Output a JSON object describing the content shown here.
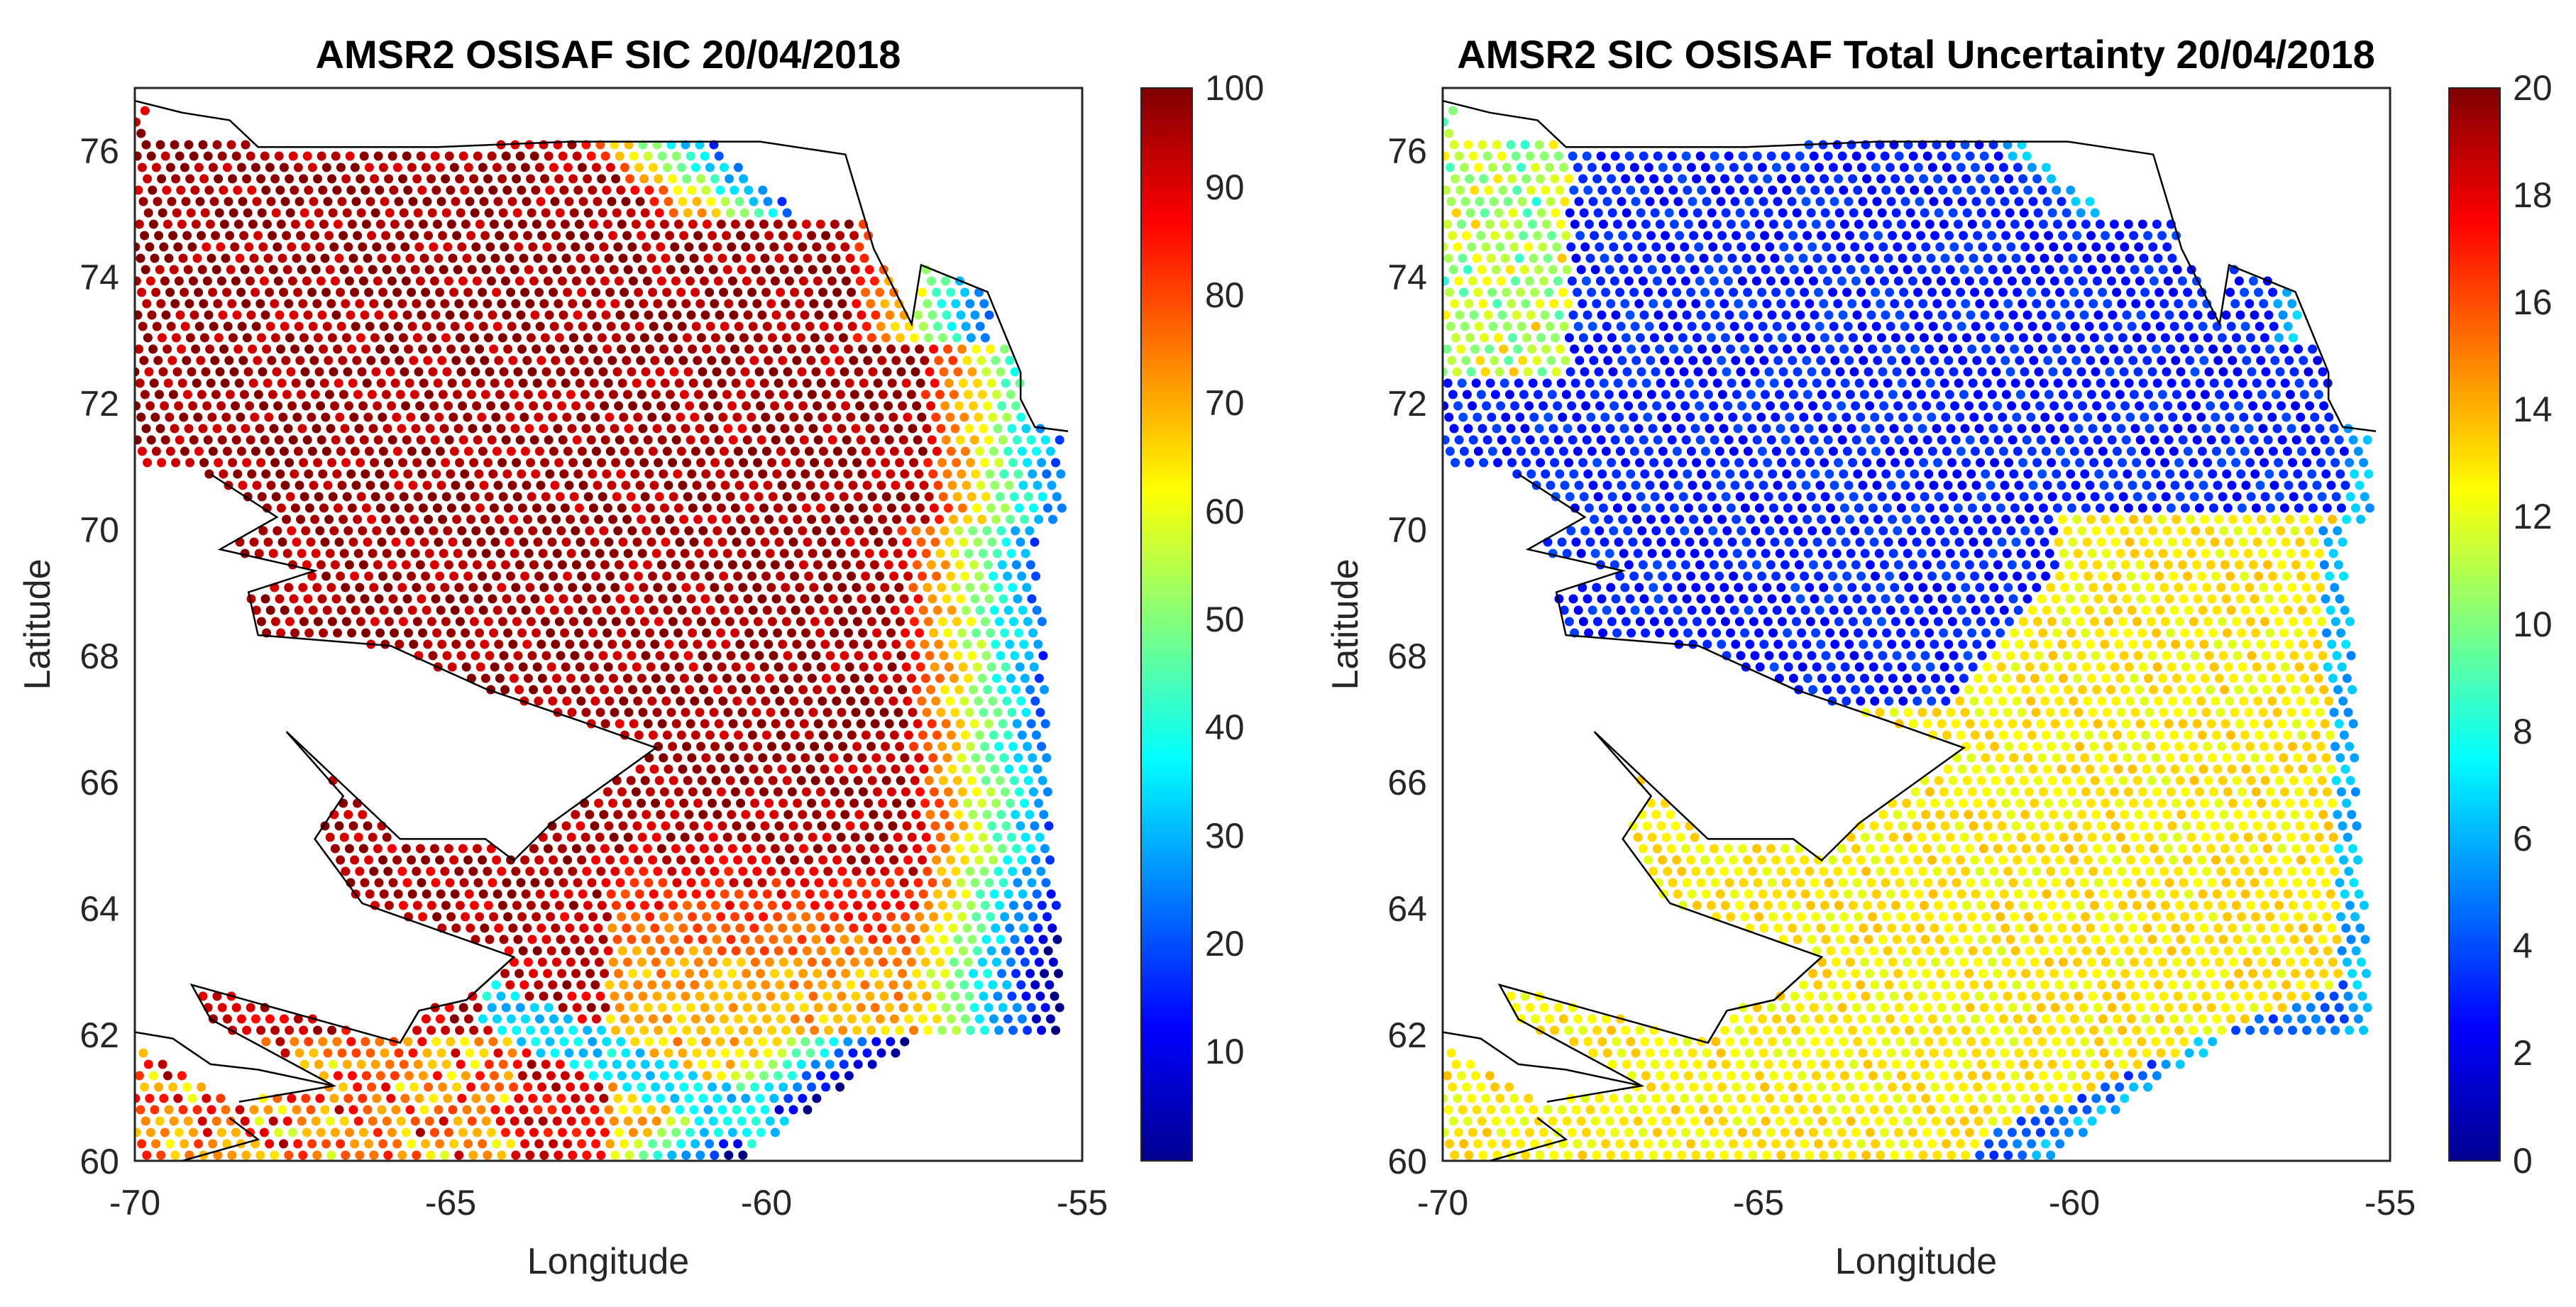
{
  "figure": {
    "background": "#ffffff"
  },
  "chart_data": [
    {
      "type": "scatter",
      "title": "AMSR2 OSISAF SIC 20/04/2018",
      "xlabel": "Longitude",
      "ylabel": "Latitude",
      "xlim": [
        -70,
        -55
      ],
      "ylim": [
        60,
        77
      ],
      "xticks": [
        "-70",
        "-65",
        "-60",
        "-55"
      ],
      "xtick_values": [
        -70,
        -65,
        -60,
        -55
      ],
      "yticks": [
        "60",
        "62",
        "64",
        "66",
        "68",
        "70",
        "72",
        "74",
        "76"
      ],
      "ytick_values": [
        60,
        62,
        64,
        66,
        68,
        70,
        72,
        74,
        76
      ],
      "colorbar": {
        "colormap": "jet",
        "range": [
          0,
          100
        ],
        "ticks": [
          "10",
          "20",
          "30",
          "40",
          "50",
          "60",
          "70",
          "80",
          "90",
          "100"
        ],
        "tick_values": [
          10,
          20,
          30,
          40,
          50,
          60,
          70,
          80,
          90,
          100
        ]
      },
      "field": "sic",
      "regions": [
        "Northern Baffin Bay (72-77N): 90-100 % sea ice concentration",
        "Central Davis Strait (66-71N): 80-95 %, streaks of 60-80 %",
        "Eastern ice edge (-57 to -55E): drops to 10-40 %",
        "Southern Labrador Sea (60-62N): mixed 60-95 %"
      ]
    },
    {
      "type": "scatter",
      "title": "AMSR2 SIC OSISAF Total Uncertainty 20/04/2018",
      "xlabel": "Longitude",
      "ylabel": "Latitude",
      "xlim": [
        -70,
        -55
      ],
      "ylim": [
        60,
        77
      ],
      "xticks": [
        "-70",
        "-65",
        "-60",
        "-55"
      ],
      "xtick_values": [
        -70,
        -65,
        -60,
        -55
      ],
      "yticks": [
        "60",
        "62",
        "64",
        "66",
        "68",
        "70",
        "72",
        "74",
        "76"
      ],
      "ytick_values": [
        60,
        62,
        64,
        66,
        68,
        70,
        72,
        74,
        76
      ],
      "colorbar": {
        "colormap": "jet",
        "range": [
          0,
          20
        ],
        "ticks": [
          "0",
          "2",
          "4",
          "6",
          "8",
          "10",
          "12",
          "14",
          "16",
          "18",
          "20"
        ],
        "tick_values": [
          0,
          2,
          4,
          6,
          8,
          10,
          12,
          14,
          16,
          18,
          20
        ]
      },
      "field": "uncertainty",
      "regions": [
        "Northern Baffin Bay (70-77N): uncertainty 2-4 %",
        "Central and southern Davis Strait: uncertainty 12-14 %",
        "Open water in south-east corner: uncertainty about 4-5 %"
      ]
    }
  ]
}
